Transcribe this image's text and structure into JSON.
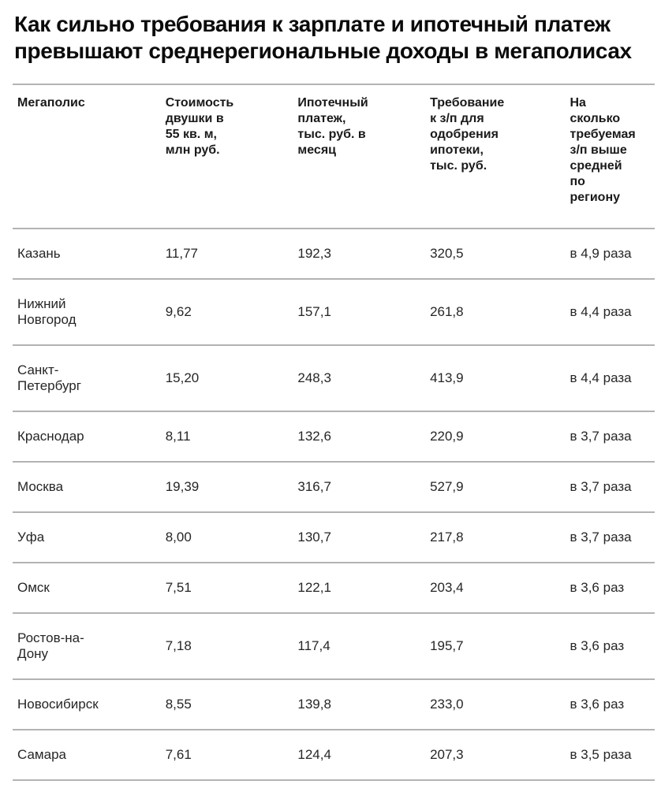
{
  "title": "Как сильно требования к зарплате и ипотечный платеж\nпревышают среднерегиональные доходы в мегаполисах",
  "table": {
    "header": [
      "Мегаполис",
      "Стоимость\nдвушки в\n55 кв. м,\nмлн руб.",
      "Ипотечный\nплатеж,\nтыс. руб. в\nмесяц",
      "Требование\nк з/п для\nодобрения\nипотеки,\nтыс. руб.",
      "На\nсколько\nтребуемая\nз/п выше\nсредней\nпо\nрегиону"
    ],
    "rows": [
      {
        "city": "Казань",
        "price": "11,77",
        "payment": "192,3",
        "salary": "320,5",
        "ratio": "в 4,9 раза"
      },
      {
        "city": "Нижний\nНовгород",
        "price": "9,62",
        "payment": "157,1",
        "salary": "261,8",
        "ratio": "в 4,4 раза"
      },
      {
        "city": "Санкт-\nПетербург",
        "price": "15,20",
        "payment": "248,3",
        "salary": "413,9",
        "ratio": "в 4,4 раза"
      },
      {
        "city": "Краснодар",
        "price": "8,11",
        "payment": "132,6",
        "salary": "220,9",
        "ratio": "в 3,7 раза"
      },
      {
        "city": "Москва",
        "price": "19,39",
        "payment": "316,7",
        "salary": "527,9",
        "ratio": "в 3,7 раза"
      },
      {
        "city": "Уфа",
        "price": "8,00",
        "payment": "130,7",
        "salary": "217,8",
        "ratio": "в 3,7 раза"
      },
      {
        "city": "Омск",
        "price": "7,51",
        "payment": "122,1",
        "salary": "203,4",
        "ratio": "в 3,6 раз"
      },
      {
        "city": "Ростов-на-\nДону",
        "price": "7,18",
        "payment": "117,4",
        "salary": "195,7",
        "ratio": "в 3,6 раз"
      },
      {
        "city": "Новосибирск",
        "price": "8,55",
        "payment": "139,8",
        "salary": "233,0",
        "ratio": "в 3,6 раз"
      },
      {
        "city": "Самара",
        "price": "7,61",
        "payment": "124,4",
        "salary": "207,3",
        "ratio": "в 3,5 раза"
      }
    ]
  },
  "chart_data": {
    "type": "table",
    "title": "Как сильно требования к зарплате и ипотечный платеж превышают среднерегиональные доходы в мегаполисах",
    "columns": [
      "Мегаполис",
      "Стоимость двушки в 55 кв. м, млн руб.",
      "Ипотечный платеж, тыс. руб. в месяц",
      "Требование к з/п для одобрения ипотеки, тыс. руб.",
      "На сколько требуемая з/п выше средней по региону"
    ],
    "rows": [
      [
        "Казань",
        11.77,
        192.3,
        320.5,
        "в 4,9 раза"
      ],
      [
        "Нижний Новгород",
        9.62,
        157.1,
        261.8,
        "в 4,4 раза"
      ],
      [
        "Санкт-Петербург",
        15.2,
        248.3,
        413.9,
        "в 4,4 раза"
      ],
      [
        "Краснодар",
        8.11,
        132.6,
        220.9,
        "в 3,7 раза"
      ],
      [
        "Москва",
        19.39,
        316.7,
        527.9,
        "в 3,7 раза"
      ],
      [
        "Уфа",
        8.0,
        130.7,
        217.8,
        "в 3,7 раза"
      ],
      [
        "Омск",
        7.51,
        122.1,
        203.4,
        "в 3,6 раз"
      ],
      [
        "Ростов-на-Дону",
        7.18,
        117.4,
        195.7,
        "в 3,6 раз"
      ],
      [
        "Новосибирск",
        8.55,
        139.8,
        233.0,
        "в 3,6 раз"
      ],
      [
        "Самара",
        7.61,
        124.4,
        207.3,
        "в 3,5 раза"
      ]
    ]
  },
  "colors": {
    "background": "#ffffff",
    "title_text": "#0b0b0b",
    "body_text": "#262626",
    "divider": "#b3b3b3"
  }
}
